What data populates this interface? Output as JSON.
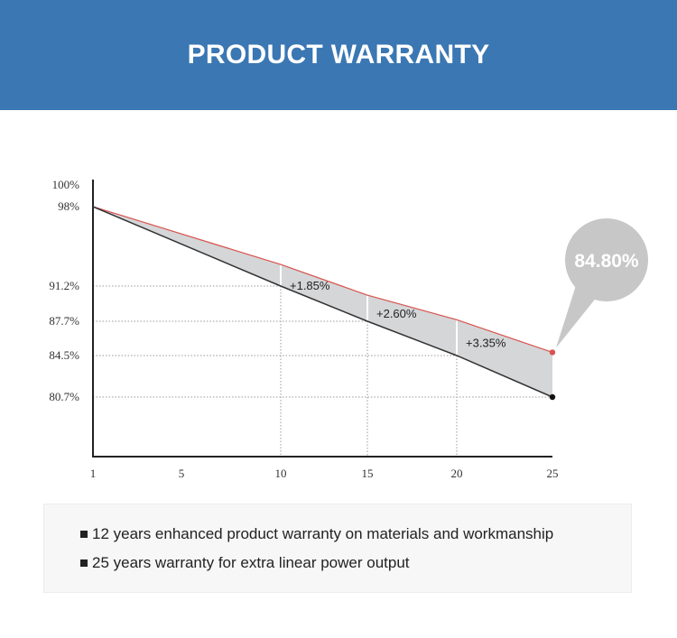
{
  "header": {
    "title": "PRODUCT WARRANTY",
    "background": "#3a77b3"
  },
  "chart_data": {
    "type": "line",
    "title": "",
    "xlabel": "",
    "ylabel": "",
    "x_ticks": [
      1,
      5,
      10,
      15,
      20,
      25
    ],
    "y_ticks": [
      "100%",
      "98%",
      "91.2%",
      "87.7%",
      "84.5%",
      "80.7%"
    ],
    "grid": "dotted reference lines at marked values",
    "series": [
      {
        "color": "#d9534f",
        "points": [
          [
            1,
            98.0
          ],
          [
            10,
            93.05
          ],
          [
            15,
            90.3
          ],
          [
            20,
            87.85
          ],
          [
            25,
            84.8
          ]
        ]
      },
      {
        "color": "#333333",
        "points": [
          [
            1,
            98.0
          ],
          [
            10,
            91.2
          ],
          [
            15,
            87.7
          ],
          [
            20,
            84.5
          ],
          [
            25,
            80.7
          ]
        ]
      }
    ],
    "gain_labels": [
      {
        "x": 10,
        "text": "+1.85%"
      },
      {
        "x": 15,
        "text": "+2.60%"
      },
      {
        "x": 20,
        "text": "+3.35%"
      }
    ],
    "callout": {
      "x": 25,
      "text": "84.80%"
    },
    "fill_color": "#d4d6d8"
  },
  "info": {
    "items": [
      "12 years enhanced product warranty on materials and workmanship",
      "25 years warranty for extra linear power output"
    ]
  }
}
